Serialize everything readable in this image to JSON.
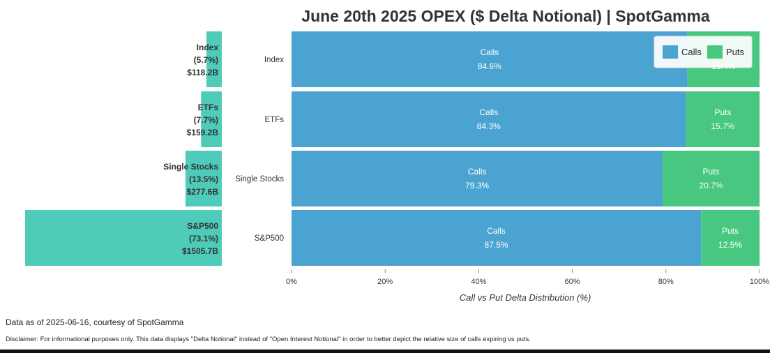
{
  "chart_data": {
    "title": "June 20th 2025 OPEX ($ Delta Notional) | SpotGamma",
    "colors": {
      "calls": "#4aa3d0",
      "puts": "#47c77f",
      "share": "#4ecbb9"
    },
    "left_panel": {
      "type": "bar",
      "orientation": "horizontal-reversed",
      "categories": [
        "Index",
        "ETFs",
        "Single Stocks",
        "S&P500"
      ],
      "share_percent": [
        5.7,
        7.7,
        13.5,
        73.1
      ],
      "notional_billions": [
        118.2,
        159.2,
        277.6,
        1505.7
      ],
      "labels": [
        {
          "name": "Index",
          "pct": "(5.7%)",
          "value": "$118.2B"
        },
        {
          "name": "ETFs",
          "pct": "(7.7%)",
          "value": "$159.2B"
        },
        {
          "name": "Single Stocks",
          "pct": "(13.5%)",
          "value": "$277.6B"
        },
        {
          "name": "S&P500",
          "pct": "(73.1%)",
          "value": "$1505.7B"
        }
      ]
    },
    "right_panel": {
      "type": "bar",
      "orientation": "horizontal-stacked",
      "categories": [
        "Index",
        "ETFs",
        "Single Stocks",
        "S&P500"
      ],
      "xlabel": "Call vs Put Delta Distribution (%)",
      "xlim": [
        0,
        100
      ],
      "xticks": [
        "0%",
        "20%",
        "40%",
        "60%",
        "80%",
        "100%"
      ],
      "series": [
        {
          "name": "Calls",
          "values": [
            84.6,
            84.3,
            79.3,
            87.5
          ],
          "labels": [
            "84.6%",
            "84.3%",
            "79.3%",
            "87.5%"
          ]
        },
        {
          "name": "Puts",
          "values": [
            15.4,
            15.7,
            20.7,
            12.5
          ],
          "labels": [
            "15.4%",
            "15.7%",
            "20.7%",
            "12.5%"
          ]
        }
      ],
      "legend": {
        "position": "top-right",
        "entries": [
          "Calls",
          "Puts"
        ]
      }
    }
  },
  "footer": {
    "note": "Data as of 2025-06-16, courtesy of SpotGamma",
    "disclaimer": "Disclaimer: For informational purposes only. This data displays \"Delta Notional\" instead of \"Open Interest Notional\" in order to better depict the relative size of calls expiring vs puts."
  }
}
